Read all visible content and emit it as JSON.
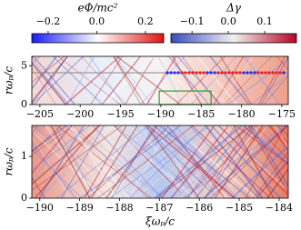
{
  "chart_data": [
    {
      "type": "colorbar",
      "title": "eΦ/mc²",
      "xlim": [
        -0.267,
        0.275
      ],
      "xticks": [
        {
          "value": -0.2,
          "label": "−0.2"
        },
        {
          "value": 0,
          "label": "0.0"
        },
        0.2
      ],
      "colors": [
        "#1a1aff",
        "#ffffff",
        "#e01414"
      ]
    },
    {
      "type": "colorbar",
      "title": "Δγ",
      "xlim": [
        -0.158,
        0.1875
      ],
      "xticks": [
        {
          "value": -0.1,
          "label": "−0.1"
        },
        {
          "value": 0,
          "label": "0.0"
        },
        0.1
      ],
      "colors": [
        "#3b4cc0",
        "#f2f0ef",
        "#b40426"
      ]
    },
    {
      "type": "heatmap",
      "ylabel": "rωₚ/c",
      "xlim": [
        -206.0,
        -174.2
      ],
      "ylim": [
        0,
        6.2
      ],
      "xticks": [
        {
          "value": -205,
          "label": "−205"
        },
        {
          "value": -200,
          "label": "−200"
        },
        {
          "value": -195,
          "label": "−195"
        },
        {
          "value": -190,
          "label": "−190"
        },
        {
          "value": -185,
          "label": "−185"
        },
        {
          "value": -180,
          "label": "−180"
        },
        {
          "value": -175,
          "label": "−175"
        }
      ],
      "yticks": [
        0,
        5
      ]
    },
    {
      "type": "heatmap",
      "ylabel": "rωₚ/c",
      "xlabel": "ξωₚ/c",
      "xlim": [
        -190.2,
        -183.77
      ],
      "ylim": [
        0,
        1.74
      ],
      "xticks": [
        {
          "value": -190,
          "label": "−190"
        },
        {
          "value": -189,
          "label": "−189"
        },
        {
          "value": -188,
          "label": "−188"
        },
        {
          "value": -187,
          "label": "−187"
        },
        {
          "value": -186,
          "label": "−186"
        },
        {
          "value": -185,
          "label": "−185"
        },
        {
          "value": -184,
          "label": "−184"
        }
      ],
      "yticks": [
        0,
        1
      ]
    }
  ]
}
